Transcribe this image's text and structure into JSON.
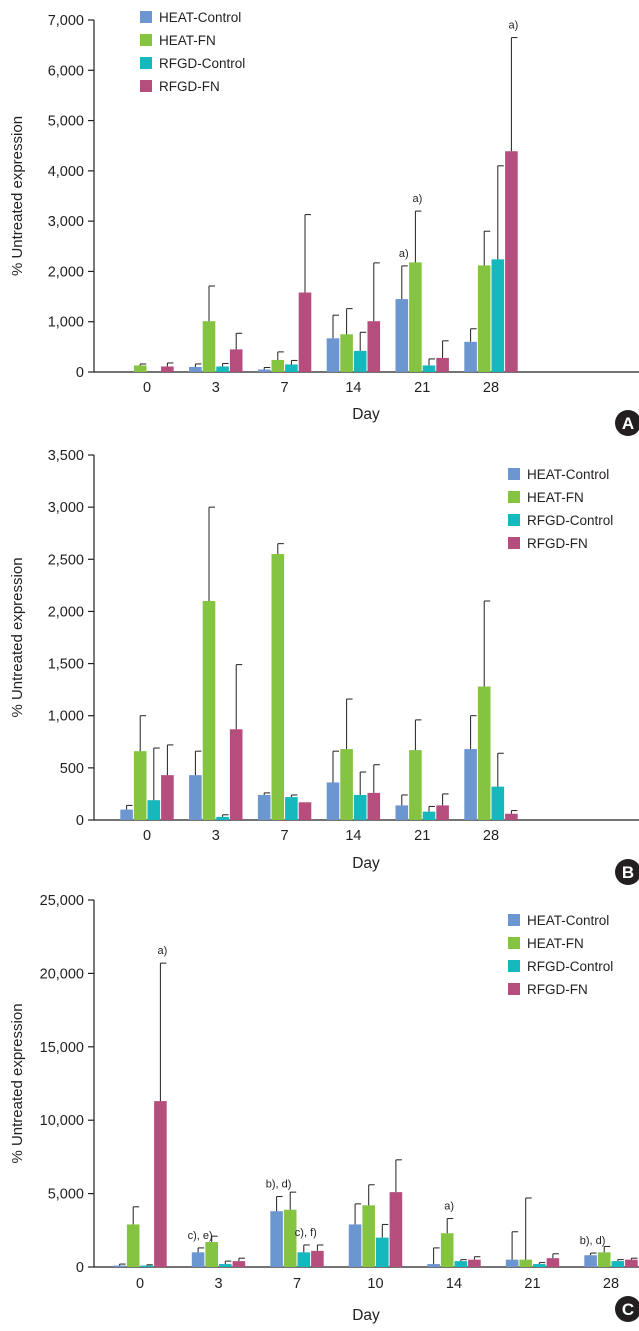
{
  "series_names": [
    "HEAT-Control",
    "HEAT-FN",
    "RFGD-Control",
    "RFGD-FN"
  ],
  "colors": {
    "HEAT-Control": "#6b96cf",
    "HEAT-FN": "#84c441",
    "RFGD-Control": "#15b8bc",
    "RFGD-FN": "#b54e7d",
    "axis": "#231f20",
    "panel_badge": "#231f20"
  },
  "chart_data": [
    {
      "type": "bar",
      "panel_label": "A",
      "categories": [
        "0",
        "3",
        "7",
        "14",
        "21",
        "28"
      ],
      "xlabel": "Day",
      "ylabel": "% Untreated expression",
      "ylim": [
        0,
        7000
      ],
      "yticks": [
        0,
        1000,
        2000,
        3000,
        4000,
        5000,
        6000,
        7000
      ],
      "ytick_labels": [
        "0",
        "1,000",
        "2,000",
        "3,000",
        "4,000",
        "5,000",
        "6,000",
        "7,000"
      ],
      "legend": "top-left",
      "grid": false,
      "series": [
        {
          "name": "HEAT-Control",
          "values": [
            0,
            100,
            50,
            670,
            1450,
            600
          ],
          "errors": [
            0,
            60,
            40,
            460,
            660,
            260
          ]
        },
        {
          "name": "HEAT-FN",
          "values": [
            130,
            1010,
            240,
            750,
            2180,
            2120
          ],
          "errors": [
            30,
            700,
            160,
            510,
            1020,
            680
          ]
        },
        {
          "name": "RFGD-Control",
          "values": [
            0,
            110,
            150,
            420,
            130,
            2240
          ],
          "errors": [
            0,
            60,
            80,
            370,
            130,
            1860
          ]
        },
        {
          "name": "RFGD-FN",
          "values": [
            110,
            450,
            1580,
            1010,
            280,
            4390
          ],
          "errors": [
            70,
            320,
            1550,
            1160,
            340,
            2260
          ]
        }
      ],
      "annotations": [
        {
          "category": "21",
          "series": "HEAT-Control",
          "text": "a)"
        },
        {
          "category": "21",
          "series": "HEAT-FN",
          "text": "a)"
        },
        {
          "category": "28",
          "series": "RFGD-FN",
          "text": "a)"
        }
      ]
    },
    {
      "type": "bar",
      "panel_label": "B",
      "categories": [
        "0",
        "3",
        "7",
        "14",
        "21",
        "28"
      ],
      "xlabel": "Day",
      "ylabel": "% Untreated expression",
      "ylim": [
        0,
        3500
      ],
      "yticks": [
        0,
        500,
        1000,
        1500,
        2000,
        2500,
        3000,
        3500
      ],
      "ytick_labels": [
        "0",
        "500",
        "1,000",
        "1,500",
        "2,000",
        "2,500",
        "3,000",
        "3,500"
      ],
      "legend": "top-right",
      "grid": false,
      "series": [
        {
          "name": "HEAT-Control",
          "values": [
            100,
            430,
            240,
            360,
            140,
            680
          ],
          "errors": [
            40,
            230,
            20,
            300,
            100,
            320
          ]
        },
        {
          "name": "HEAT-FN",
          "values": [
            660,
            2100,
            2550,
            680,
            670,
            1280
          ],
          "errors": [
            340,
            900,
            100,
            480,
            290,
            820
          ]
        },
        {
          "name": "RFGD-Control",
          "values": [
            190,
            30,
            220,
            240,
            80,
            320
          ],
          "errors": [
            500,
            20,
            20,
            220,
            50,
            320
          ]
        },
        {
          "name": "RFGD-FN",
          "values": [
            430,
            870,
            170,
            260,
            140,
            60
          ],
          "errors": [
            290,
            620,
            0,
            270,
            110,
            30
          ]
        }
      ],
      "annotations": []
    },
    {
      "type": "bar",
      "panel_label": "C",
      "categories": [
        "0",
        "3",
        "7",
        "10",
        "14",
        "21",
        "28"
      ],
      "xlabel": "Day",
      "ylabel": "% Untreated expression",
      "ylim": [
        0,
        25000
      ],
      "yticks": [
        0,
        5000,
        10000,
        15000,
        20000,
        25000
      ],
      "ytick_labels": [
        "0",
        "5,000",
        "10,000",
        "15,000",
        "20,000",
        "25,000"
      ],
      "legend": "top-right",
      "grid": false,
      "series": [
        {
          "name": "HEAT-Control",
          "values": [
            100,
            1000,
            3800,
            2900,
            200,
            500,
            800
          ],
          "errors": [
            100,
            300,
            1000,
            1400,
            1100,
            1900,
            150
          ]
        },
        {
          "name": "HEAT-FN",
          "values": [
            2900,
            1700,
            3900,
            4200,
            2300,
            500,
            1000
          ],
          "errors": [
            1200,
            400,
            1200,
            1400,
            1000,
            4200,
            400
          ]
        },
        {
          "name": "RFGD-Control",
          "values": [
            100,
            200,
            1000,
            2000,
            400,
            200,
            400
          ],
          "errors": [
            50,
            200,
            500,
            900,
            100,
            100,
            100
          ]
        },
        {
          "name": "RFGD-FN",
          "values": [
            11300,
            400,
            1100,
            5100,
            500,
            600,
            500
          ],
          "errors": [
            9400,
            200,
            400,
            2200,
            200,
            300,
            100
          ]
        }
      ],
      "annotations": [
        {
          "category": "0",
          "series": "RFGD-FN",
          "text": "a)"
        },
        {
          "category": "3",
          "series": "HEAT-Control",
          "text": "c), e)"
        },
        {
          "category": "7",
          "series": "HEAT-Control",
          "text": "b), d)"
        },
        {
          "category": "7",
          "series": "RFGD-Control",
          "text": "c), f)"
        },
        {
          "category": "14",
          "series": "HEAT-FN",
          "text": "a)"
        },
        {
          "category": "28",
          "series": "HEAT-Control",
          "text": "b), d)"
        }
      ]
    }
  ]
}
